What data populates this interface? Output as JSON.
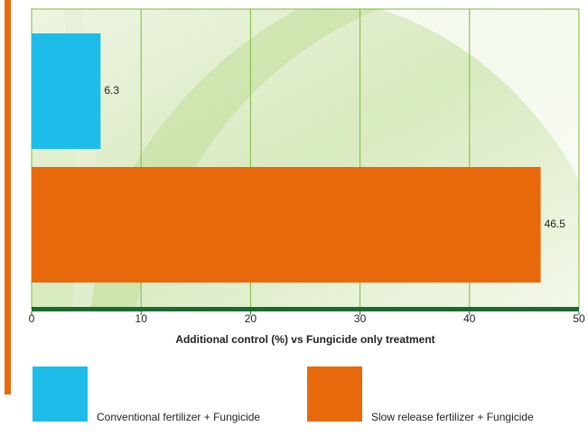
{
  "chart_data": {
    "type": "bar",
    "orientation": "horizontal",
    "categories": [
      "Conventional fertilizer + Fungicide",
      "Slow release fertilizer + Fungicide"
    ],
    "values": [
      6.3,
      46.5
    ],
    "colors": [
      "#1ebde9",
      "#e8690c"
    ],
    "xlabel": "Additional control (%) vs Fungicide only treatment",
    "xlim": [
      0,
      50
    ],
    "xticks": [
      0,
      10,
      20,
      30,
      40,
      50
    ],
    "grid": true
  }
}
